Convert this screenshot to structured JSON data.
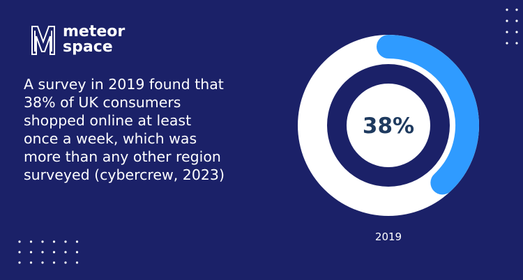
{
  "logo": {
    "line1": "meteor",
    "line2": "space"
  },
  "text_lines": [
    "A survey in 2019 found that",
    "38% of UK consumers",
    "shopped online at least",
    "once a week, which was",
    "more than any other region",
    "surveyed (cybercrew, 2023)"
  ],
  "chart_data": {
    "type": "donut",
    "categories": [
      "2019"
    ],
    "values": [
      38
    ],
    "value_labels": [
      "38%"
    ],
    "ylim": [
      0,
      100
    ],
    "color": "#2f9bff",
    "track_color": "#ffffff"
  }
}
